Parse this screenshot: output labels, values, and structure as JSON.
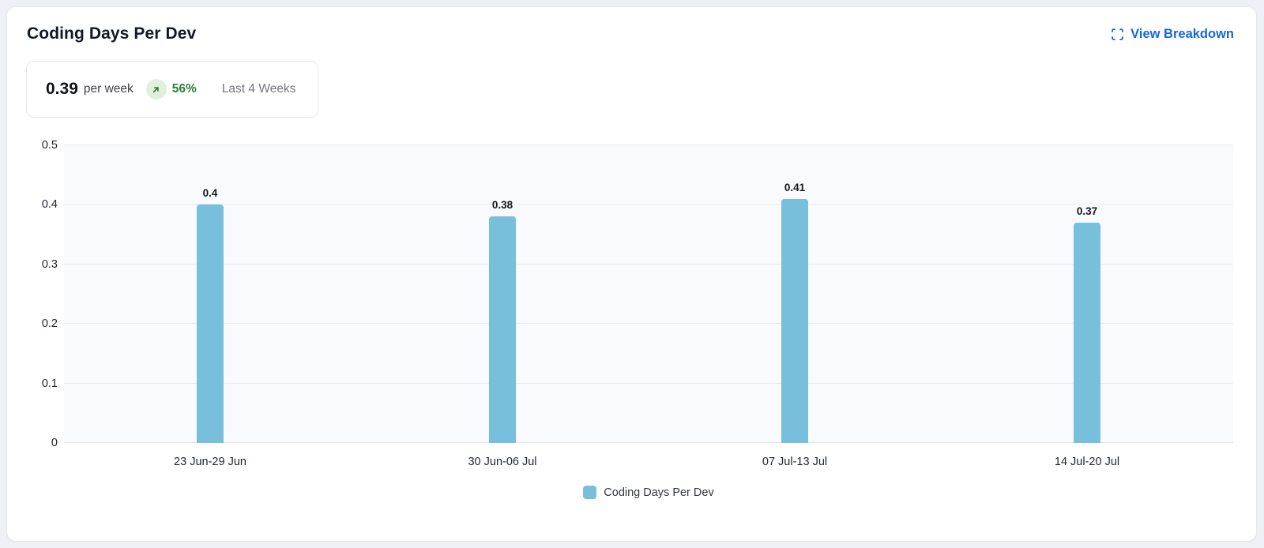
{
  "card": {
    "title": "Coding Days Per Dev",
    "actions": {
      "view_breakdown_label": "View Breakdown"
    }
  },
  "summary": {
    "value": "0.39",
    "unit": "per week",
    "change_percent": "56%",
    "trend": "up",
    "period_label": "Last 4 Weeks"
  },
  "chart_data": {
    "type": "bar",
    "title": "Coding Days Per Dev",
    "categories": [
      "23 Jun-29 Jun",
      "30 Jun-06 Jul",
      "07 Jul-13 Jul",
      "14 Jul-20 Jul"
    ],
    "values": [
      0.4,
      0.38,
      0.41,
      0.37
    ],
    "bar_labels": [
      "0.4",
      "0.38",
      "0.41",
      "0.37"
    ],
    "series_name": "Coding Days Per Dev",
    "xlabel": "",
    "ylabel": "",
    "ylim": [
      0,
      0.5
    ],
    "yticks": [
      0,
      0.1,
      0.2,
      0.3,
      0.4,
      0.5
    ],
    "ytick_labels": [
      "0",
      "0.1",
      "0.2",
      "0.3",
      "0.4",
      "0.5"
    ],
    "grid": true,
    "legend": [
      "Coding Days Per Dev"
    ],
    "legend_position": "bottom",
    "colors": {
      "bar": "#78bfdc",
      "plot_bg": "#f8fafd",
      "grid": "#e8eaee",
      "axis_line": "#dfe1e6"
    }
  },
  "colors": {
    "link_blue": "#1667d9",
    "positive_green": "#2e7d32",
    "positive_badge_bg": "#e0f0dc"
  }
}
